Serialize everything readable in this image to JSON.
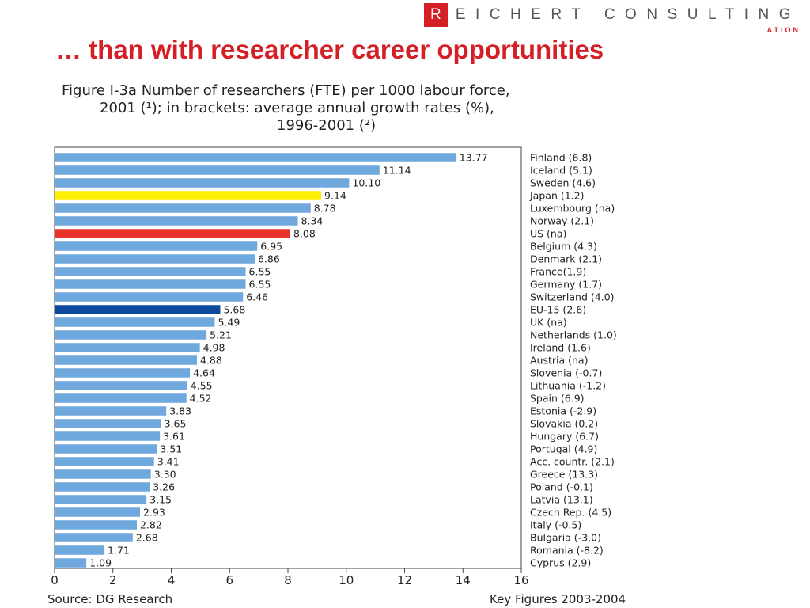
{
  "header": {
    "logo_letter": "R",
    "logo_text": "EICHERT CONSULTING",
    "logo_sub": "ATION",
    "slide_title": "… than with researcher career opportunities"
  },
  "figure": {
    "title_line1": "Figure I-3a   Number of researchers (FTE) per 1000 labour force,",
    "title_line2": "2001 (¹); in brackets: average annual growth rates (%),",
    "title_line3": "1996-2001 (²)",
    "source": "Source:  DG Research",
    "key_figures": "Key Figures 2003-2004"
  },
  "colors": {
    "default_bar": "#6fa8dc",
    "japan": "#ffee00",
    "us": "#e8332a",
    "eu15": "#0d4a9e",
    "accent": "#d41f26"
  },
  "chart_data": {
    "type": "bar",
    "orientation": "horizontal",
    "title": "Number of researchers (FTE) per 1000 labour force, 2001 (¹); in brackets: average annual growth rates (%), 1996-2001 (²)",
    "xlim": [
      0,
      16
    ],
    "xticks": [
      0,
      2,
      4,
      6,
      8,
      10,
      12,
      14,
      16
    ],
    "grid": false,
    "categories": [
      "Finland (6.8)",
      "Iceland (5.1)",
      "Sweden (4.6)",
      "Japan (1.2)",
      "Luxembourg (na)",
      "Norway (2.1)",
      "US (na)",
      "Belgium (4.3)",
      "Denmark (2.1)",
      "France(1.9)",
      "Germany (1.7)",
      "Switzerland (4.0)",
      "EU-15 (2.6)",
      "UK (na)",
      "Netherlands (1.0)",
      "Ireland (1.6)",
      "Austria (na)",
      "Slovenia (-0.7)",
      "Lithuania (-1.2)",
      "Spain (6.9)",
      "Estonia (-2.9)",
      "Slovakia (0.2)",
      "Hungary (6.7)",
      "Portugal (4.9)",
      "Acc. countr. (2.1)",
      "Greece (13.3)",
      "Poland (-0.1)",
      "Latvia (13.1)",
      "Czech Rep. (4.5)",
      "Italy (-0.5)",
      "Bulgaria (-3.0)",
      "Romania (-8.2)",
      "Cyprus (2.9)"
    ],
    "values": [
      13.77,
      11.14,
      10.1,
      9.14,
      8.78,
      8.34,
      8.08,
      6.95,
      6.86,
      6.55,
      6.55,
      6.46,
      5.68,
      5.49,
      5.21,
      4.98,
      4.88,
      4.64,
      4.55,
      4.52,
      3.83,
      3.65,
      3.61,
      3.51,
      3.41,
      3.3,
      3.26,
      3.15,
      2.93,
      2.82,
      2.68,
      1.71,
      1.09
    ],
    "value_labels": [
      "13.77",
      "11.14",
      "10.10",
      "9.14",
      "8.78",
      "8.34",
      "8.08",
      "6.95",
      "6.86",
      "6.55",
      "6.55",
      "6.46",
      "5.68",
      "5.49",
      "5.21",
      "4.98",
      "4.88",
      "4.64",
      "4.55",
      "4.52",
      "3.83",
      "3.65",
      "3.61",
      "3.51",
      "3.41",
      "3.30",
      "3.26",
      "3.15",
      "2.93",
      "2.82",
      "2.68",
      "1.71",
      "1.09"
    ],
    "highlights": {
      "Japan (1.2)": "japan",
      "US (na)": "us",
      "EU-15 (2.6)": "eu15"
    }
  }
}
